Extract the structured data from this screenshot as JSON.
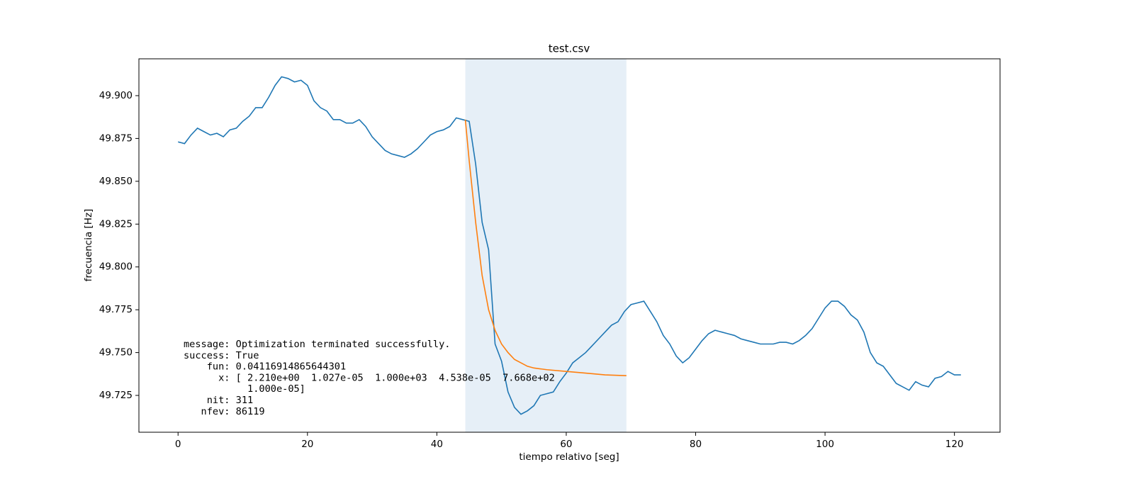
{
  "chart_data": {
    "type": "line",
    "title": "test.csv",
    "x_label": "tiempo relativo [seg]",
    "y_label": "frecuencia [Hz]",
    "xlim": [
      -6.05,
      127.05
    ],
    "ylim": [
      49.7035,
      49.9215
    ],
    "xticks": [
      0,
      20,
      40,
      60,
      80,
      100,
      120
    ],
    "yticks": [
      49.725,
      {
        "value": 49.75,
        "label": "49.750"
      },
      49.775,
      {
        "value": 49.8,
        "label": "49.800"
      },
      49.825,
      {
        "value": 49.85,
        "label": "49.850"
      },
      49.875,
      {
        "value": 49.9,
        "label": "49.900"
      }
    ],
    "axvspan": {
      "range": [
        44.4,
        69.3
      ],
      "color": "#e6eff7"
    },
    "series": [
      {
        "color": "#1f77b4",
        "x": [
          0,
          1,
          2,
          3,
          4,
          5,
          6,
          7,
          8,
          9,
          10,
          11,
          12,
          13,
          14,
          15,
          16,
          17,
          18,
          19,
          20,
          21,
          22,
          23,
          24,
          25,
          26,
          27,
          28,
          29,
          30,
          31,
          32,
          33,
          34,
          35,
          36,
          37,
          38,
          39,
          40,
          41,
          42,
          43,
          44,
          45,
          46,
          47,
          48,
          49,
          50,
          51,
          52,
          53,
          54,
          55,
          56,
          57,
          58,
          59,
          60,
          61,
          62,
          63,
          64,
          65,
          66,
          67,
          68,
          69,
          70,
          71,
          72,
          73,
          74,
          75,
          76,
          77,
          78,
          79,
          80,
          81,
          82,
          83,
          84,
          85,
          86,
          87,
          88,
          89,
          90,
          91,
          92,
          93,
          94,
          95,
          96,
          97,
          98,
          99,
          100,
          101,
          102,
          103,
          104,
          105,
          106,
          107,
          108,
          109,
          110,
          111,
          112,
          113,
          114,
          115,
          116,
          117,
          118,
          119,
          120,
          121
        ],
        "values": [
          49.873,
          49.872,
          49.877,
          49.881,
          49.879,
          49.877,
          49.878,
          49.876,
          49.88,
          49.881,
          49.885,
          49.888,
          49.893,
          49.893,
          49.899,
          49.906,
          49.911,
          49.91,
          49.908,
          49.909,
          49.906,
          49.897,
          49.893,
          49.891,
          49.886,
          49.886,
          49.884,
          49.884,
          49.886,
          49.882,
          49.876,
          49.872,
          49.868,
          49.866,
          49.865,
          49.864,
          49.866,
          49.869,
          49.873,
          49.877,
          49.879,
          49.88,
          49.882,
          49.887,
          49.886,
          49.885,
          49.86,
          49.826,
          49.81,
          49.755,
          49.745,
          49.727,
          49.718,
          49.714,
          49.716,
          49.719,
          49.725,
          49.726,
          49.727,
          49.733,
          49.738,
          49.744,
          49.747,
          49.75,
          49.754,
          49.758,
          49.762,
          49.766,
          49.768,
          49.774,
          49.778,
          49.779,
          49.78,
          49.774,
          49.768,
          49.76,
          49.755,
          49.748,
          49.744,
          49.747,
          49.752,
          49.757,
          49.761,
          49.763,
          49.762,
          49.761,
          49.76,
          49.758,
          49.757,
          49.756,
          49.755,
          49.755,
          49.755,
          49.756,
          49.756,
          49.755,
          49.757,
          49.76,
          49.764,
          49.77,
          49.776,
          49.78,
          49.78,
          49.777,
          49.772,
          49.769,
          49.762,
          49.75,
          49.744,
          49.742,
          49.737,
          49.732,
          49.73,
          49.728,
          49.733,
          49.731,
          49.73,
          49.735,
          49.736,
          49.739,
          49.737,
          49.737
        ]
      },
      {
        "color": "#ff7f0e",
        "x": [
          44.4,
          45,
          46,
          47,
          48,
          49,
          50,
          51,
          52,
          53,
          54,
          55,
          57,
          60,
          63,
          66,
          69.3
        ],
        "values": [
          49.886,
          49.862,
          49.826,
          49.795,
          49.775,
          49.763,
          49.755,
          49.75,
          49.746,
          49.744,
          49.742,
          49.741,
          49.74,
          49.739,
          49.738,
          49.737,
          49.7365
        ]
      }
    ],
    "annotation": [
      "message: Optimization terminated successfully.",
      "success: True",
      "    fun: 0.04116914865644301",
      "      x: [ 2.210e+00  1.027e-05  1.000e+03  4.538e-05  7.668e+02",
      "           1.000e-05]",
      "    nit: 311",
      "   nfev: 86119"
    ]
  }
}
